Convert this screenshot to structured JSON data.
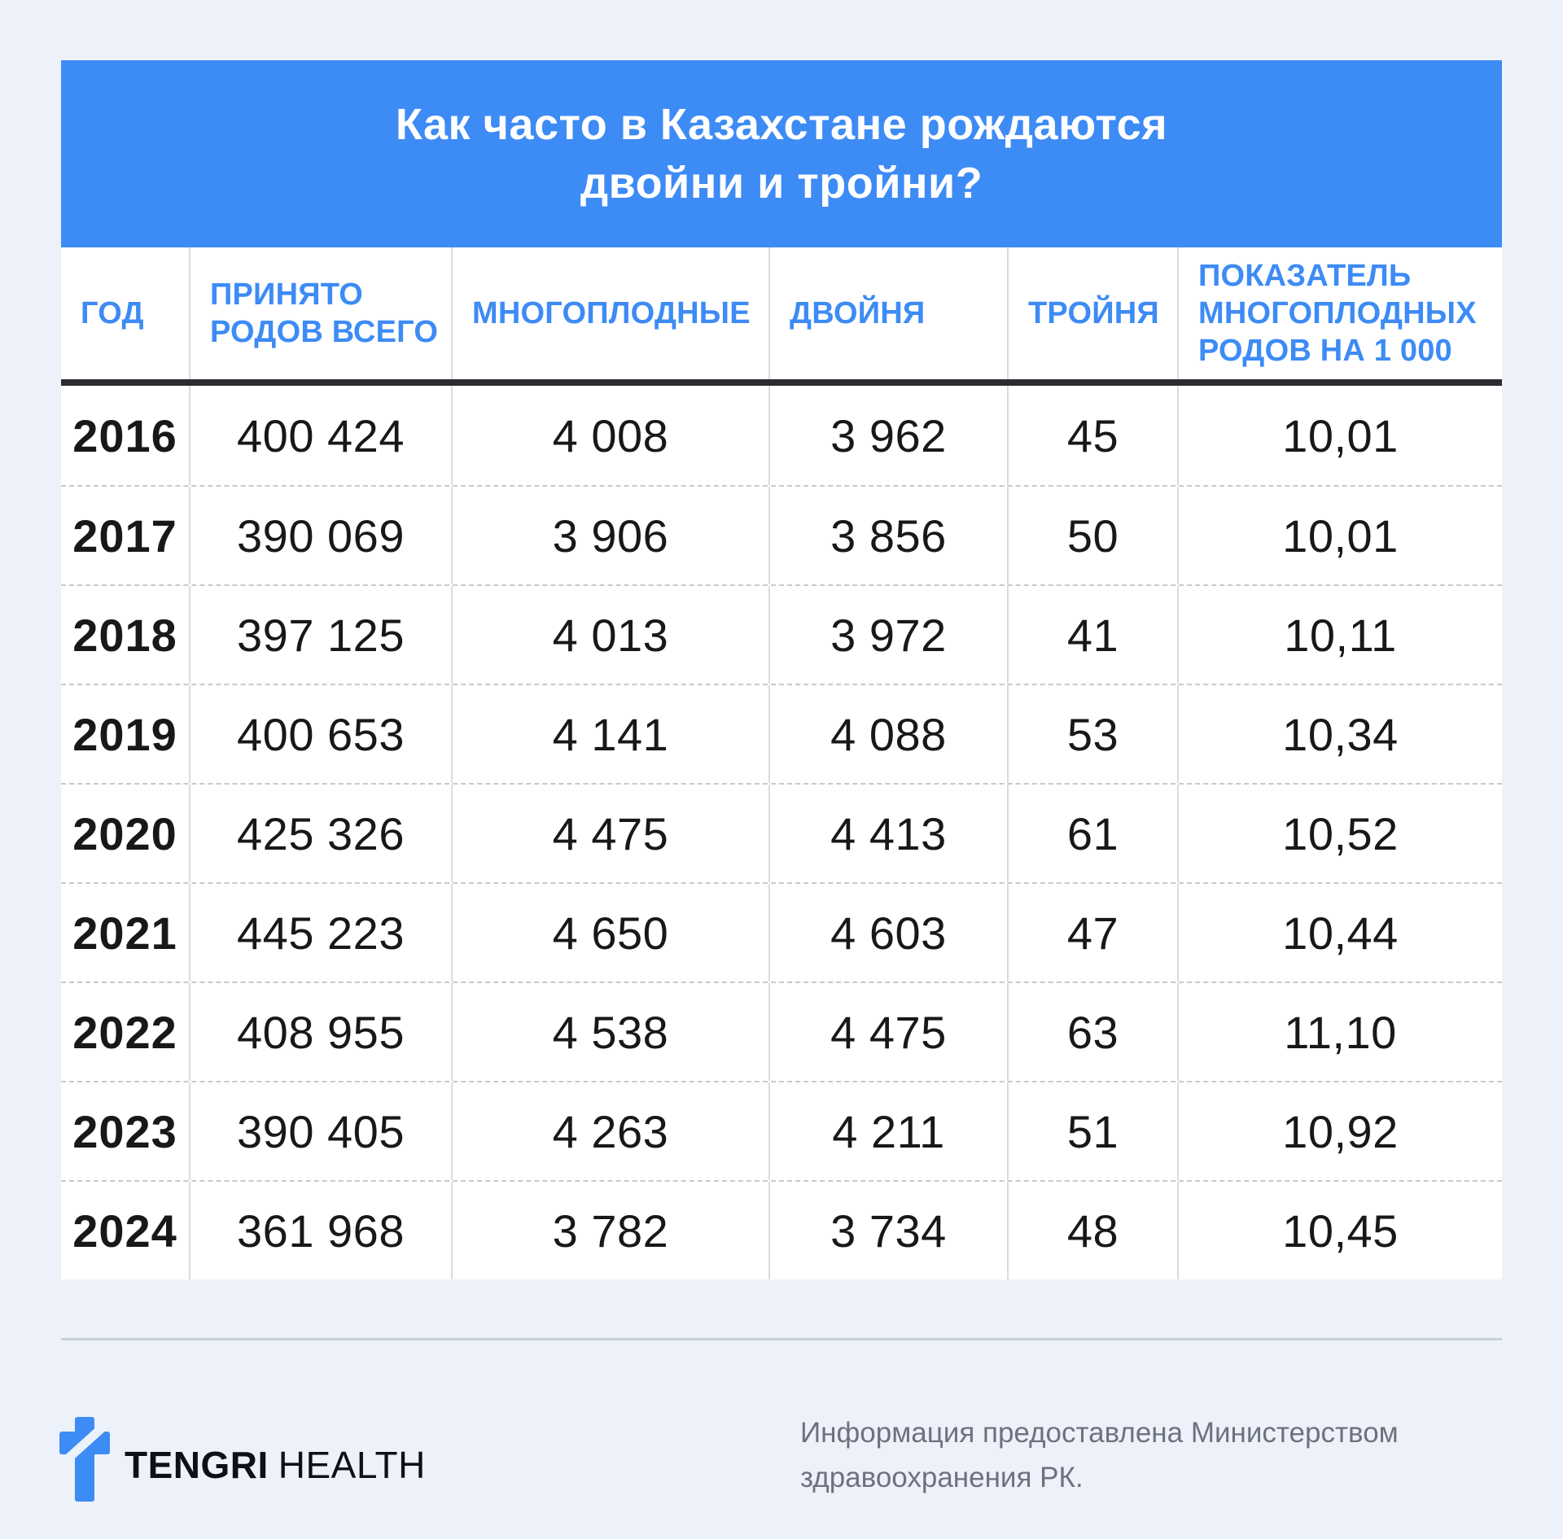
{
  "page": {
    "colors": {
      "background": "#edf2fa",
      "accent": "#3d8bf5",
      "card": "#ffffff",
      "ink": "#17181a",
      "muted_text": "#6d727e",
      "column_rule": "#d9dbe0",
      "row_dash": "#c7c9cd",
      "heavy_rule": "#2b2d31",
      "footer_divider": "#c9cfd8"
    }
  },
  "title": {
    "line1": "Как часто в Казахстане рождаются",
    "line2": "двойни и тройни?"
  },
  "table": {
    "columns": [
      {
        "key": "year",
        "label": "ГОД"
      },
      {
        "key": "total-births",
        "label": "ПРИНЯТО РОДОВ ВСЕГО"
      },
      {
        "key": "multiple",
        "label": "МНОГОПЛОДНЫЕ"
      },
      {
        "key": "twins",
        "label": "ДВОЙНЯ"
      },
      {
        "key": "triplets",
        "label": "ТРОЙНЯ"
      },
      {
        "key": "rate-per-1000",
        "label": "ПОКАЗАТЕЛЬ МНОГОПЛОДНЫХ РОДОВ НА 1 000"
      }
    ],
    "rows": [
      [
        "2016",
        "400 424",
        "4 008",
        "3 962",
        "45",
        "10,01"
      ],
      [
        "2017",
        "390 069",
        "3 906",
        "3 856",
        "50",
        "10,01"
      ],
      [
        "2018",
        "397 125",
        "4 013",
        "3 972",
        "41",
        "10,11"
      ],
      [
        "2019",
        "400 653",
        "4 141",
        "4 088",
        "53",
        "10,34"
      ],
      [
        "2020",
        "425 326",
        "4 475",
        "4 413",
        "61",
        "10,52"
      ],
      [
        "2021",
        "445 223",
        "4 650",
        "4 603",
        "47",
        "10,44"
      ],
      [
        "2022",
        "408 955",
        "4 538",
        "4 475",
        "63",
        "11,10"
      ],
      [
        "2023",
        "390 405",
        "4 263",
        "4 211",
        "51",
        "10,92"
      ],
      [
        "2024",
        "361 968",
        "3 782",
        "3 734",
        "48",
        "10,45"
      ]
    ]
  },
  "chart_data": {
    "type": "table",
    "title": "Как часто в Казахстане рождаются двойни и тройни?",
    "columns": [
      "ГОД",
      "ПРИНЯТО РОДОВ ВСЕГО",
      "МНОГОПЛОДНЫЕ",
      "ДВОЙНЯ",
      "ТРОЙНЯ",
      "ПОКАЗАТЕЛЬ МНОГОПЛОДНЫХ РОДОВ НА 1 000"
    ],
    "rows": [
      [
        2016,
        400424,
        4008,
        3962,
        45,
        10.01
      ],
      [
        2017,
        390069,
        3906,
        3856,
        50,
        10.01
      ],
      [
        2018,
        397125,
        4013,
        3972,
        41,
        10.11
      ],
      [
        2019,
        400653,
        4141,
        4088,
        53,
        10.34
      ],
      [
        2020,
        425326,
        4475,
        4413,
        61,
        10.52
      ],
      [
        2021,
        445223,
        4650,
        4603,
        47,
        10.44
      ],
      [
        2022,
        408955,
        4538,
        4475,
        63,
        11.1
      ],
      [
        2023,
        390405,
        4263,
        4211,
        51,
        10.92
      ],
      [
        2024,
        361968,
        3782,
        3734,
        48,
        10.45
      ]
    ],
    "source": "Информация предоставлена Министерством здравоохранения РК."
  },
  "footer": {
    "brand_bold": "TENGRI",
    "brand_light": "HEALTH",
    "source": "Информация предоставлена Министерством здравоохранения РК."
  }
}
